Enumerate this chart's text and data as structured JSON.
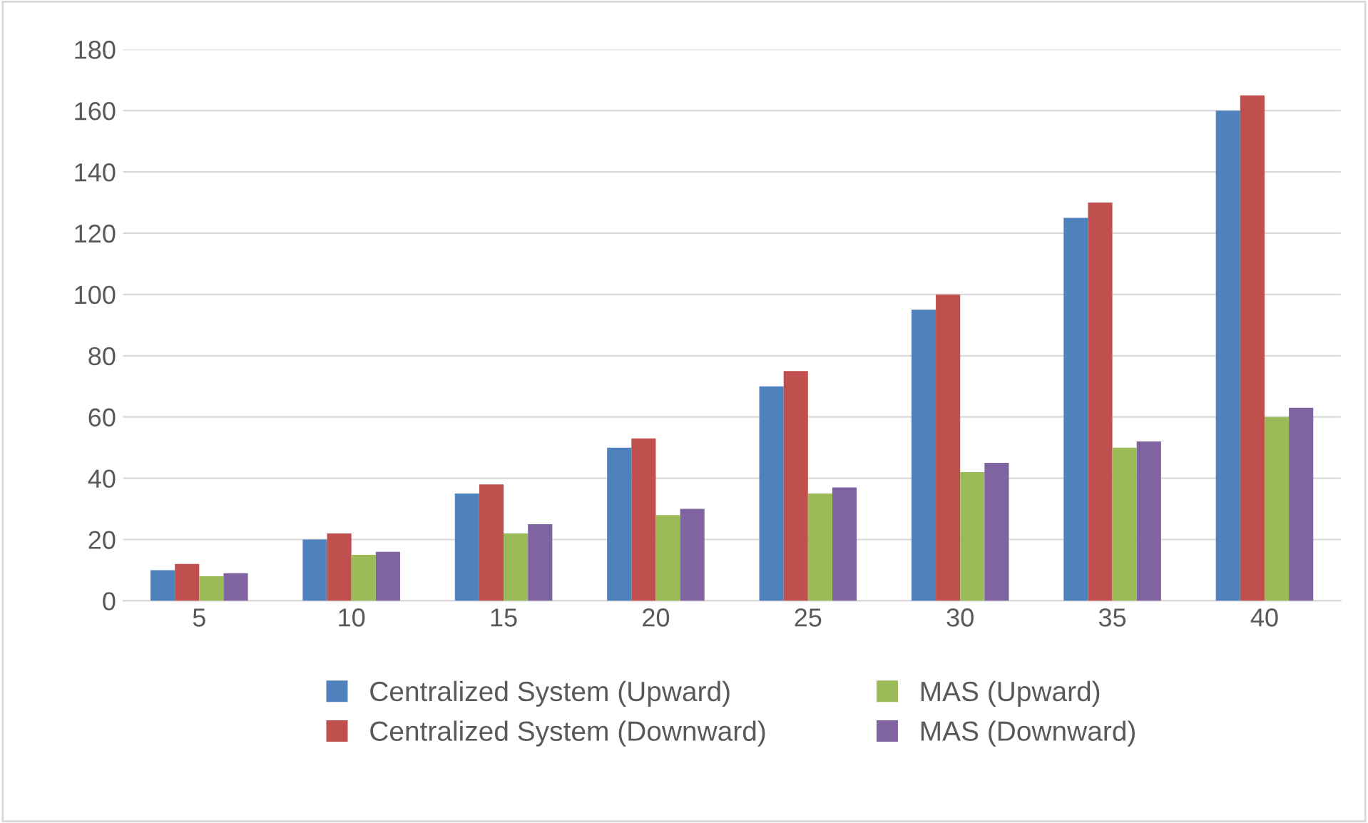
{
  "chart_data": {
    "type": "bar",
    "categories": [
      "5",
      "10",
      "15",
      "20",
      "25",
      "30",
      "35",
      "40"
    ],
    "series": [
      {
        "name": "Centralized System (Upward)",
        "color": "#4f81bd",
        "values": [
          10,
          20,
          35,
          50,
          70,
          95,
          125,
          160
        ]
      },
      {
        "name": "Centralized System (Downward)",
        "color": "#c0504d",
        "values": [
          12,
          22,
          38,
          53,
          75,
          100,
          130,
          165
        ]
      },
      {
        "name": "MAS (Upward)",
        "color": "#9bbb59",
        "values": [
          8,
          15,
          22,
          28,
          35,
          42,
          50,
          60
        ]
      },
      {
        "name": "MAS (Downward)",
        "color": "#8064a2",
        "values": [
          9,
          16,
          25,
          30,
          37,
          45,
          52,
          63
        ]
      }
    ],
    "ylim": [
      0,
      180
    ],
    "yticks": [
      0,
      20,
      40,
      60,
      80,
      100,
      120,
      140,
      160,
      180
    ],
    "grid": "y",
    "legend": "bottom"
  }
}
